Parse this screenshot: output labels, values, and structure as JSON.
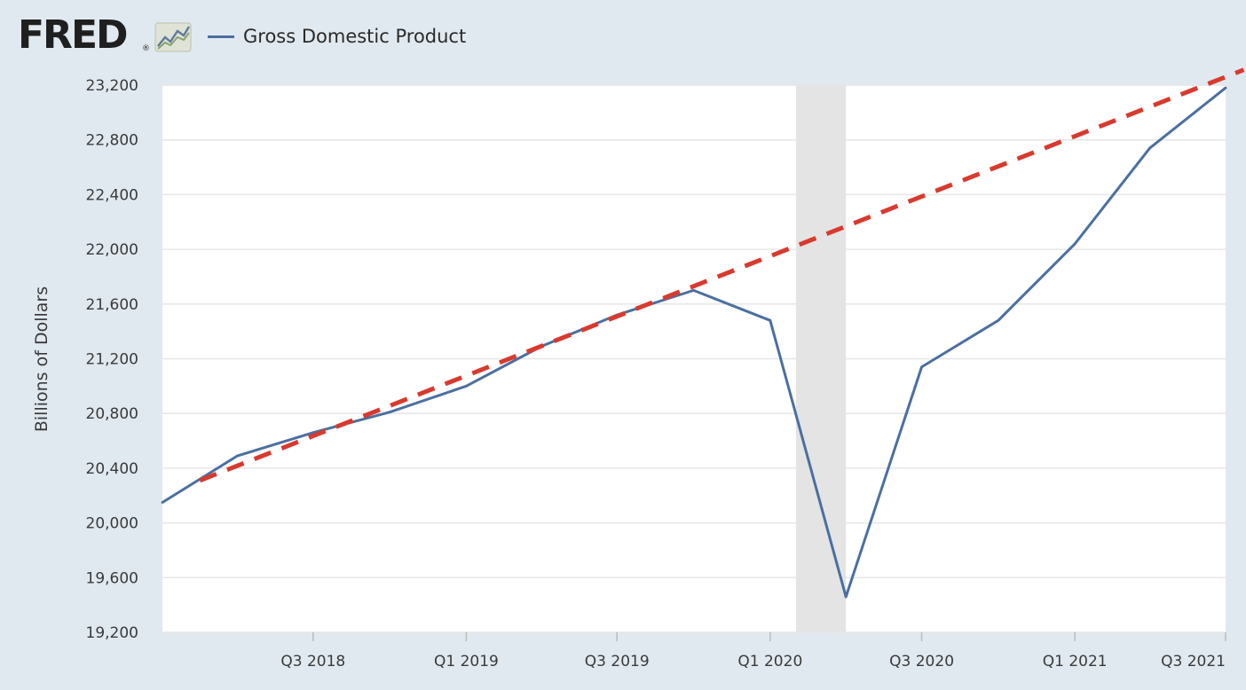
{
  "header": {
    "logo_text": "FRED",
    "logo_mark": "®",
    "logo_icon": "line-graph-icon"
  },
  "chart_data": {
    "type": "line",
    "title": "",
    "xlabel": "",
    "ylabel": "Billions of Dollars",
    "ylim": [
      19200,
      23200
    ],
    "yticks": [
      19200,
      19600,
      20000,
      20400,
      20800,
      21200,
      21600,
      22000,
      22400,
      22800,
      23200
    ],
    "ytick_labels": [
      "19,200",
      "19,600",
      "20,000",
      "20,400",
      "20,800",
      "21,200",
      "21,600",
      "22,000",
      "22,400",
      "22,800",
      "23,200"
    ],
    "x": [
      "2018-01-01",
      "2018-04-01",
      "2018-07-01",
      "2018-10-01",
      "2019-01-01",
      "2019-04-01",
      "2019-07-01",
      "2019-10-01",
      "2020-01-01",
      "2020-04-01",
      "2020-07-01",
      "2020-10-01",
      "2021-01-01",
      "2021-04-01",
      "2021-07-01"
    ],
    "xlim": [
      "2018-01-01",
      "2021-07-01"
    ],
    "xticks": [
      "2018-07-01",
      "2019-01-01",
      "2019-07-01",
      "2020-01-01",
      "2020-07-01",
      "2021-01-01",
      "2021-07-01"
    ],
    "xtick_labels": [
      "Q3 2018",
      "Q1 2019",
      "Q3 2019",
      "Q1 2020",
      "Q3 2020",
      "Q1 2021",
      "Q3 2021"
    ],
    "series": [
      {
        "name": "Gross Domestic Product",
        "color": "#4b6fa0",
        "values": [
          20150,
          20490,
          20660,
          20810,
          21000,
          21290,
          21520,
          21700,
          21480,
          19460,
          21140,
          21480,
          22040,
          22740,
          23180
        ]
      }
    ],
    "trend_line": {
      "color": "#d83a2e",
      "style": "dashed",
      "points": [
        {
          "x": "2018-02-15",
          "y": 20310
        },
        {
          "x": "2021-07-01",
          "y": 23260
        }
      ]
    },
    "recession_shading": {
      "start": "2020-02-01",
      "end": "2020-04-01",
      "color": "#e4e4e4"
    },
    "grid": true,
    "legend": "top-left"
  }
}
